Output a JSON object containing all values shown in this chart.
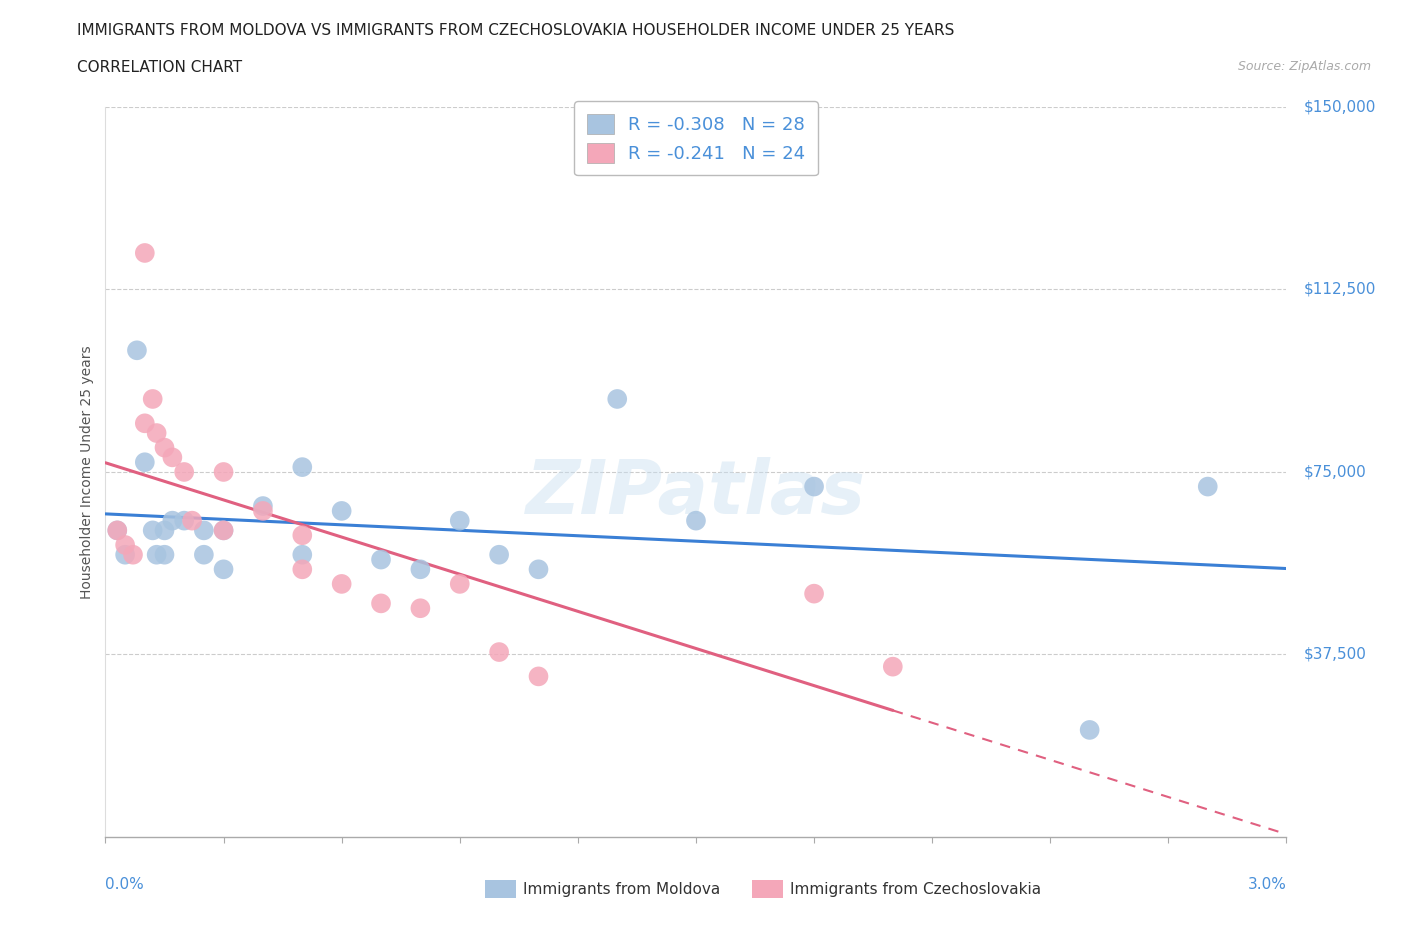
{
  "title_line1": "IMMIGRANTS FROM MOLDOVA VS IMMIGRANTS FROM CZECHOSLOVAKIA HOUSEHOLDER INCOME UNDER 25 YEARS",
  "title_line2": "CORRELATION CHART",
  "source_text": "Source: ZipAtlas.com",
  "ylabel": "Householder Income Under 25 years",
  "xlim": [
    0.0,
    0.03
  ],
  "ylim": [
    0,
    150000
  ],
  "yticks": [
    0,
    37500,
    75000,
    112500,
    150000
  ],
  "ytick_labels": [
    "",
    "$37,500",
    "$75,000",
    "$112,500",
    "$150,000"
  ],
  "watermark": "ZIPatlas",
  "moldova_color": "#a8c4e0",
  "czech_color": "#f4a7b9",
  "moldova_line_color": "#3a7fd5",
  "czech_line_color": "#e06080",
  "moldova_R": -0.308,
  "moldova_N": 28,
  "czech_R": -0.241,
  "czech_N": 24,
  "legend_label_moldova": "Immigrants from Moldova",
  "legend_label_czech": "Immigrants from Czechoslovakia",
  "background_color": "#ffffff",
  "grid_color": "#cccccc",
  "moldova_x": [
    0.0003,
    0.0005,
    0.0008,
    0.001,
    0.0012,
    0.0013,
    0.0015,
    0.0015,
    0.0017,
    0.002,
    0.0025,
    0.0025,
    0.003,
    0.003,
    0.004,
    0.005,
    0.005,
    0.006,
    0.007,
    0.008,
    0.009,
    0.01,
    0.011,
    0.013,
    0.015,
    0.018,
    0.025,
    0.028
  ],
  "moldova_y": [
    63000,
    58000,
    100000,
    77000,
    63000,
    58000,
    63000,
    58000,
    65000,
    65000,
    63000,
    58000,
    63000,
    55000,
    68000,
    76000,
    58000,
    67000,
    57000,
    55000,
    65000,
    58000,
    55000,
    90000,
    65000,
    72000,
    22000,
    72000
  ],
  "czech_x": [
    0.0003,
    0.0005,
    0.0007,
    0.001,
    0.001,
    0.0012,
    0.0013,
    0.0015,
    0.0017,
    0.002,
    0.0022,
    0.003,
    0.003,
    0.004,
    0.005,
    0.005,
    0.006,
    0.007,
    0.008,
    0.009,
    0.01,
    0.011,
    0.018,
    0.02
  ],
  "czech_y": [
    63000,
    60000,
    58000,
    120000,
    85000,
    90000,
    83000,
    80000,
    78000,
    75000,
    65000,
    63000,
    75000,
    67000,
    62000,
    55000,
    52000,
    48000,
    47000,
    52000,
    38000,
    33000,
    50000,
    35000
  ],
  "title_fontsize": 11,
  "axis_label_color": "#4a90d9",
  "dot_size": 200
}
